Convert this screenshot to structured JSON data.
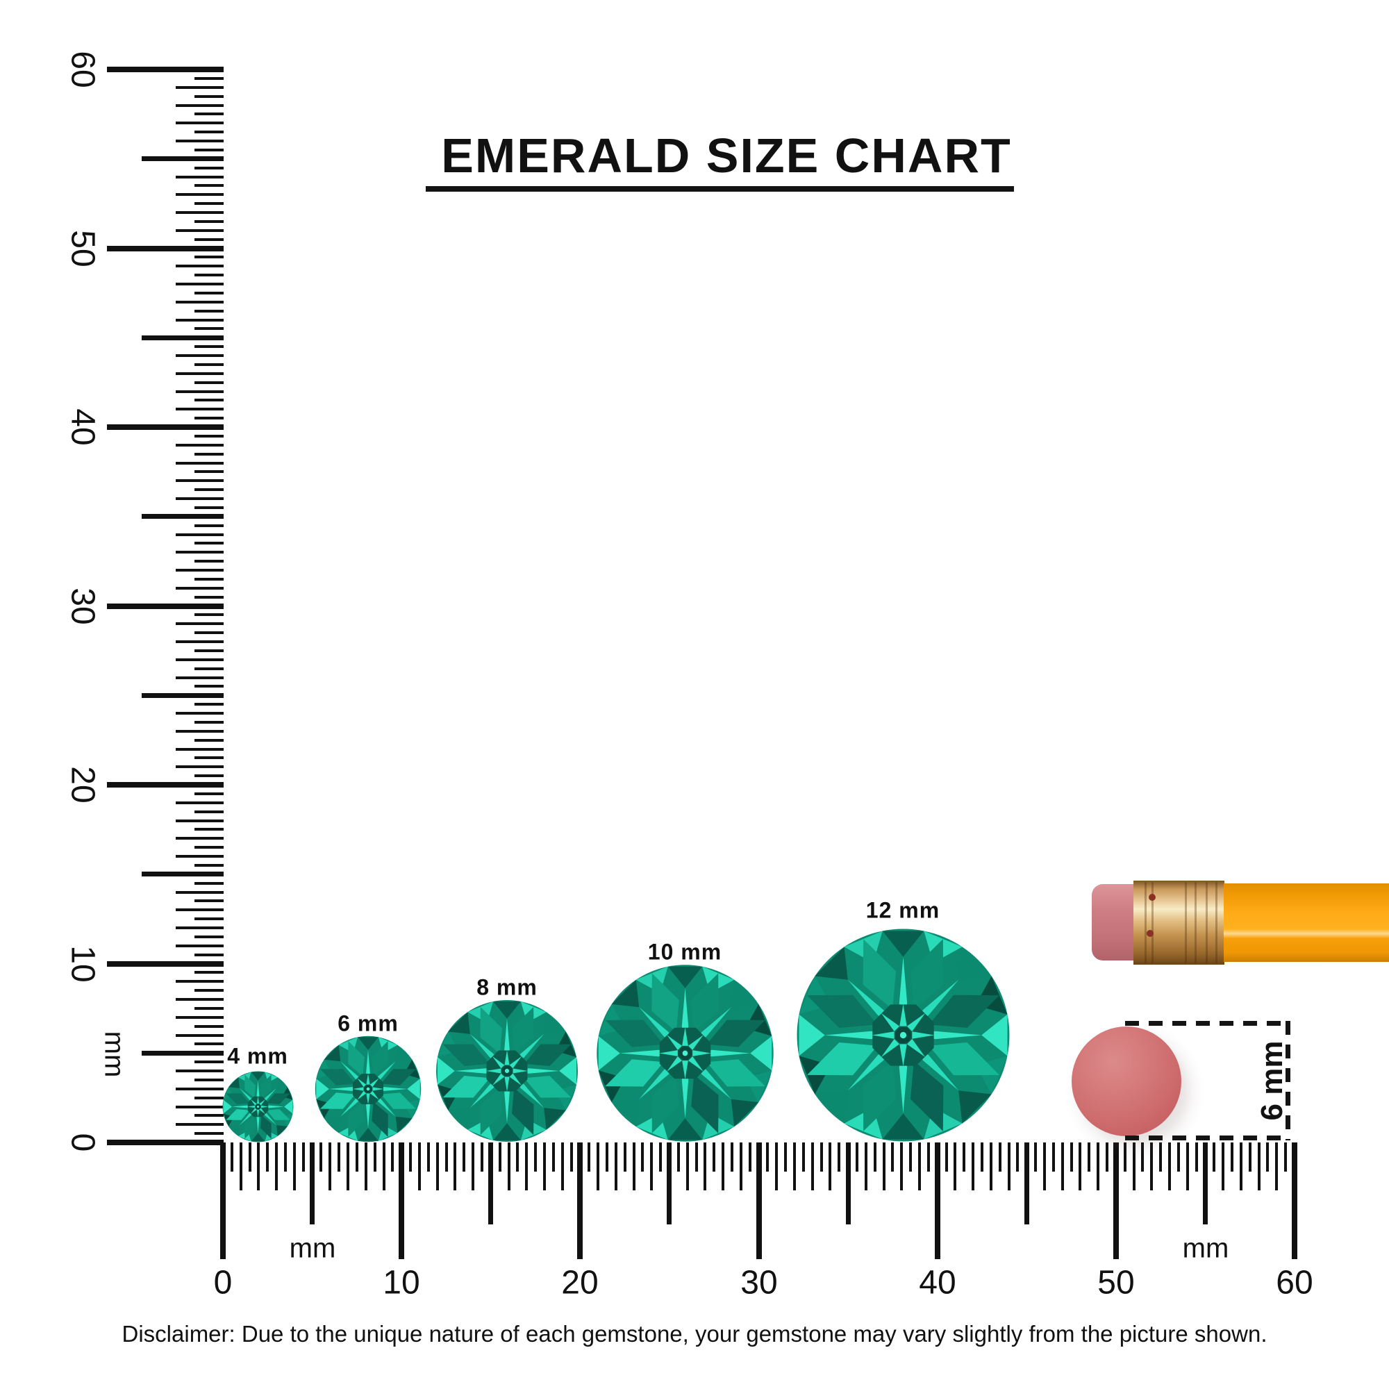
{
  "title": {
    "text": "EMERALD SIZE CHART"
  },
  "rulers": {
    "vertical": {
      "unit_label": "mm",
      "labels": [
        "0",
        "10",
        "20",
        "30",
        "40",
        "50",
        "60"
      ],
      "range_mm": [
        0,
        60
      ],
      "tick_step_mm": 0.5
    },
    "horizontal": {
      "unit_labels": [
        "mm",
        "mm"
      ],
      "labels": [
        "0",
        "10",
        "20",
        "30",
        "40",
        "50",
        "60"
      ],
      "range_mm": [
        0,
        60
      ],
      "tick_step_mm": 0.5
    }
  },
  "gems": [
    {
      "label": "4 mm",
      "size_mm": 4
    },
    {
      "label": "6 mm",
      "size_mm": 6
    },
    {
      "label": "8 mm",
      "size_mm": 8
    },
    {
      "label": "10 mm",
      "size_mm": 10
    },
    {
      "label": "12 mm",
      "size_mm": 12
    }
  ],
  "eraser_measure": {
    "label": "6 mm",
    "size_mm": 6
  },
  "disclaimer": {
    "text": "Disclaimer: Due to the unique nature of each gemstone, your gemstone may vary slightly from the picture shown."
  },
  "colors": {
    "ink": "#111111",
    "emerald_base": "#0c8b71",
    "emerald_girdle": [
      "#07604f",
      "#2adbb8",
      "#0b8a70",
      "#064d40",
      "#31e4c2",
      "#0d9579",
      "#085a4a",
      "#25cfae"
    ],
    "emerald_bezel": [
      "#0d8f74",
      "#0a6a57",
      "#15b795",
      "#096253",
      "#0d8f74",
      "#1fcdaa",
      "#0b7561",
      "#12a384"
    ],
    "emerald_arm": "#33e8c5",
    "emerald_arm_alt": "#29ddba",
    "emerald_table": "#0a5e4e",
    "emerald_star": "#2ee3c0",
    "emerald_core": "#0a4a3e",
    "emerald_core_dot": "#45f2d2",
    "eraser_pink": "#cb7a80",
    "ferrule_brass": "#d9a960",
    "pencil_orange": "#ffab17",
    "eraser_circle_pink": "#cb6668"
  }
}
